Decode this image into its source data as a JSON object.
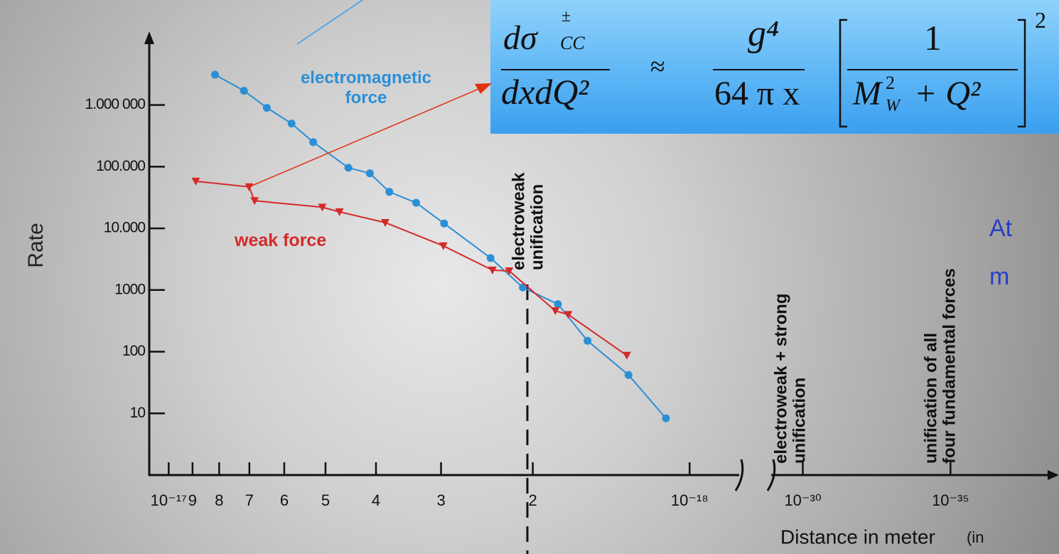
{
  "chart_data": {
    "type": "line",
    "y_label": "Rate",
    "x_label": "Distance in meter",
    "x_label_suffix": "(in",
    "xlog": true,
    "ylog": true,
    "xlim": [
      11,
      0.85
    ],
    "xticks": [
      {
        "value": 10,
        "label": "10⁻¹⁷"
      },
      9,
      8,
      7,
      6,
      5,
      4,
      3,
      2,
      {
        "value": 1,
        "label": "10⁻¹⁸"
      }
    ],
    "broken_xlim": [
      1e-11,
      1e-20
    ],
    "broken_xticks": [
      {
        "value": 1e-12,
        "label": "10⁻³⁰"
      },
      {
        "value": 1e-17,
        "label": "10⁻³⁵"
      }
    ],
    "ylim": [
      1,
      12000000
    ],
    "yticks": [
      {
        "value": 1000000,
        "label": "1.000 000"
      },
      {
        "value": 100000,
        "label": "100.000"
      },
      {
        "value": 10000,
        "label": "10.000"
      },
      1000,
      100,
      10
    ],
    "series": [
      {
        "name": "electromagnetic force",
        "color": "#2b8fd6",
        "marker": "circle",
        "x": [
          8.15,
          7.17,
          6.48,
          5.81,
          5.28,
          4.52,
          4.11,
          3.77,
          3.35,
          2.96,
          2.41,
          2.09,
          1.79,
          1.57,
          1.31,
          1.11
        ],
        "values": [
          3100000,
          1700000,
          900000,
          500000,
          250000,
          96000,
          78000,
          39000,
          26000,
          12000,
          3300,
          1100,
          590,
          150,
          42,
          8.3
        ]
      },
      {
        "name": "weak force",
        "color": "#d42a2a",
        "marker": "triangle",
        "x": [
          8.87,
          7.01,
          6.84,
          5.07,
          4.7,
          3.84,
          2.97,
          2.39,
          2.22,
          1.81,
          1.71,
          1.32
        ],
        "values": [
          58000,
          47000,
          28000,
          22000,
          18500,
          12400,
          5200,
          2100,
          2040,
          460,
          400,
          87
        ]
      }
    ],
    "annotations": [
      [
        "electroweak",
        "unification"
      ],
      [
        "electroweak + strong",
        "unification"
      ],
      [
        "unification of all",
        "four fundamental forces"
      ]
    ]
  },
  "formula": {
    "numerator_left": "dσ",
    "sup_left": "±",
    "sub_left": "CC",
    "denominator_left": "dxdQ²",
    "approx": "≈",
    "numerator_mid": "g⁴",
    "denominator_mid": "64 π  x",
    "numerator_right": "1",
    "m": "M",
    "m_sup": "2",
    "m_sub": "W",
    "rest": "+ Q²",
    "power": "2"
  },
  "side_text": [
    "At",
    "m"
  ]
}
